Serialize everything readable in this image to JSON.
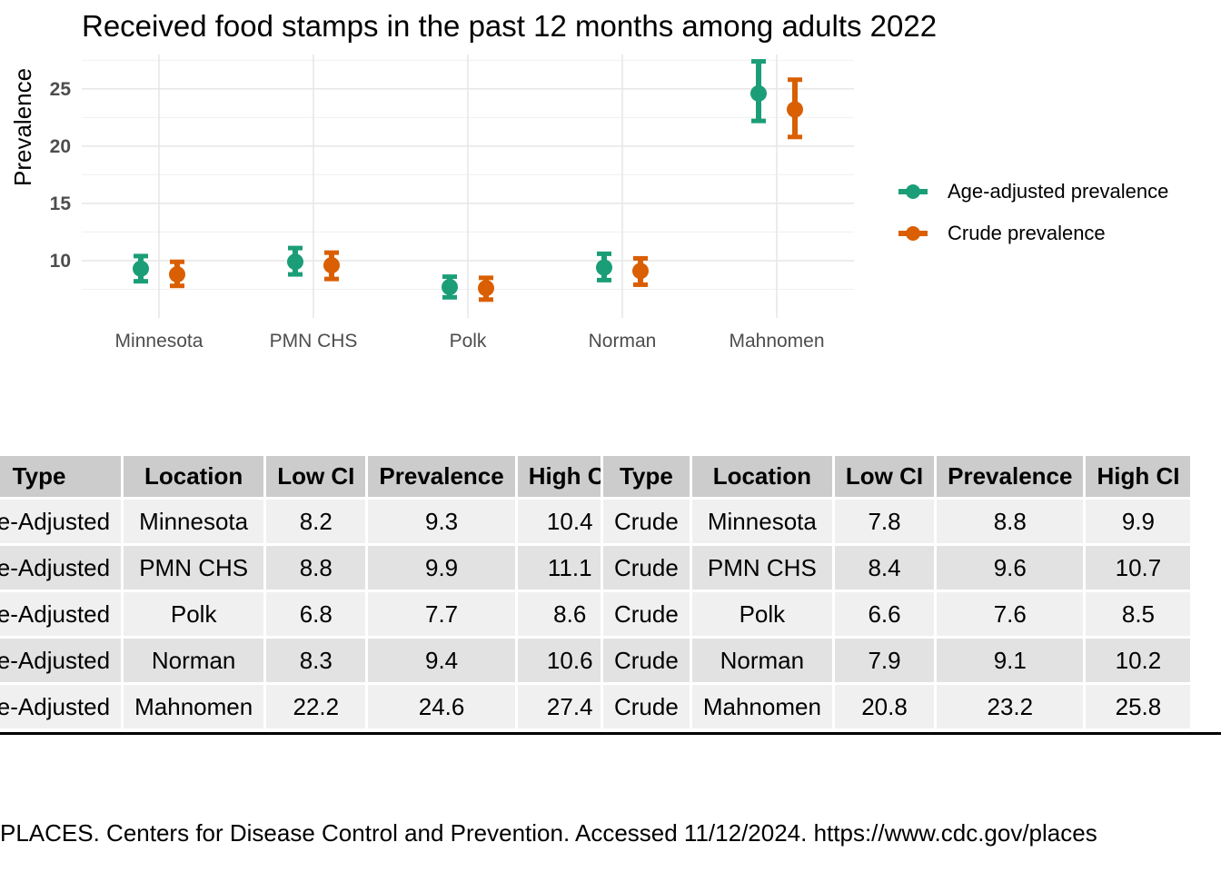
{
  "chart_data": {
    "type": "scatter",
    "title": "Received food stamps in the past 12 months among adults 2022",
    "xlabel": "",
    "ylabel": "Prevalence",
    "categories": [
      "Minnesota",
      "PMN CHS",
      "Polk",
      "Norman",
      "Mahnomen"
    ],
    "y_ticks": [
      "10",
      "15",
      "20",
      "25"
    ],
    "ylim": [
      5,
      28
    ],
    "grid": true,
    "legend_position": "right",
    "series": [
      {
        "name": "Age-adjusted prevalence",
        "color": "#1b9e77",
        "values": [
          9.3,
          9.9,
          7.7,
          9.4,
          24.6
        ],
        "low": [
          8.2,
          8.8,
          6.8,
          8.3,
          22.2
        ],
        "high": [
          10.4,
          11.1,
          8.6,
          10.6,
          27.4
        ]
      },
      {
        "name": "Crude prevalence",
        "color": "#d95f02",
        "values": [
          8.8,
          9.6,
          7.6,
          9.1,
          23.2
        ],
        "low": [
          7.8,
          8.4,
          6.6,
          7.9,
          20.8
        ],
        "high": [
          9.9,
          10.7,
          8.5,
          10.2,
          25.8
        ]
      }
    ]
  },
  "tables": {
    "headers": [
      "Type",
      "Location",
      "Low CI",
      "Prevalence",
      "High CI"
    ],
    "left_rows": [
      [
        "Age-Adjusted",
        "Minnesota",
        "8.2",
        "9.3",
        "10.4"
      ],
      [
        "Age-Adjusted",
        "PMN CHS",
        "8.8",
        "9.9",
        "11.1"
      ],
      [
        "Age-Adjusted",
        "Polk",
        "6.8",
        "7.7",
        "8.6"
      ],
      [
        "Age-Adjusted",
        "Norman",
        "8.3",
        "9.4",
        "10.6"
      ],
      [
        "Age-Adjusted",
        "Mahnomen",
        "22.2",
        "24.6",
        "27.4"
      ]
    ],
    "right_rows": [
      [
        "Crude",
        "Minnesota",
        "7.8",
        "8.8",
        "9.9"
      ],
      [
        "Crude",
        "PMN CHS",
        "8.4",
        "9.6",
        "10.7"
      ],
      [
        "Crude",
        "Polk",
        "6.6",
        "7.6",
        "8.5"
      ],
      [
        "Crude",
        "Norman",
        "7.9",
        "9.1",
        "10.2"
      ],
      [
        "Crude",
        "Mahnomen",
        "20.8",
        "23.2",
        "25.8"
      ]
    ]
  },
  "source": "PLACES. Centers for Disease Control and Prevention. Accessed 11/12/2024. https://www.cdc.gov/places"
}
